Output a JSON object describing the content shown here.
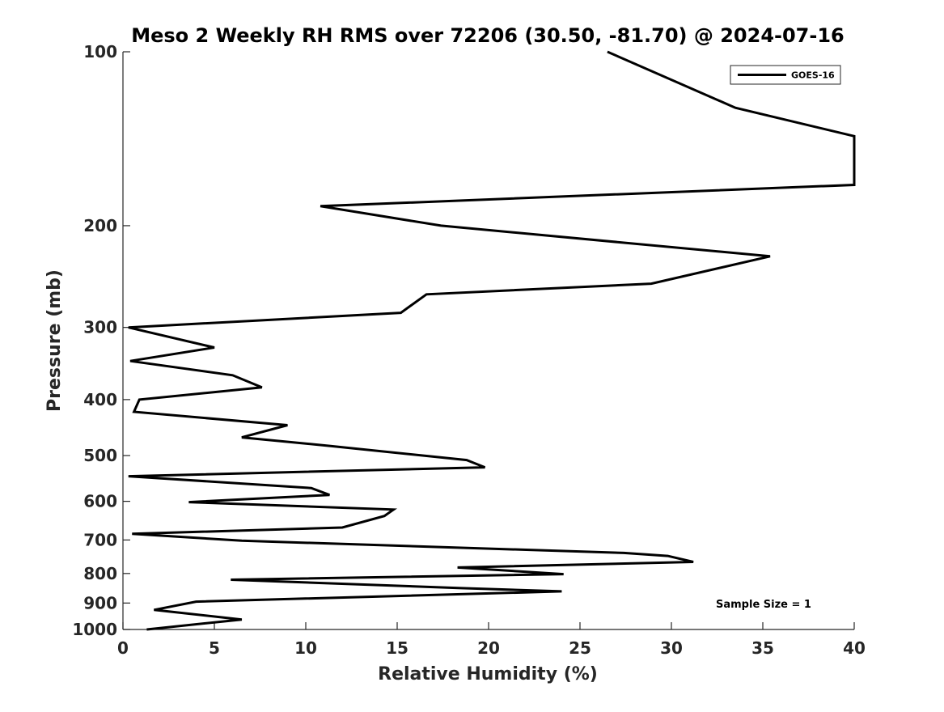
{
  "chart_data": {
    "type": "line",
    "title": "Meso 2 Weekly RH RMS over 72206 (30.50, -81.70) @ 2024-07-16",
    "xlabel": "Relative Humidity (%)",
    "ylabel": "Pressure (mb)",
    "xlim": [
      0,
      40
    ],
    "ylim": [
      100,
      1000
    ],
    "y_scale": "log",
    "y_reversed": true,
    "grid": false,
    "legend_position": "top-right",
    "x_ticks": [
      0,
      5,
      10,
      15,
      20,
      25,
      30,
      35,
      40
    ],
    "y_ticks": [
      100,
      200,
      300,
      400,
      500,
      600,
      700,
      800,
      900,
      1000
    ],
    "annotation": "Sample Size = 1",
    "color": "#000000",
    "series": [
      {
        "name": "GOES-16",
        "points": [
          [
            26.5,
            100
          ],
          [
            33.5,
            125
          ],
          [
            40.0,
            140
          ],
          [
            40.0,
            170
          ],
          [
            10.8,
            185
          ],
          [
            17.4,
            200
          ],
          [
            35.4,
            226
          ],
          [
            28.9,
            252
          ],
          [
            16.6,
            263
          ],
          [
            15.2,
            283
          ],
          [
            0.3,
            300
          ],
          [
            5.0,
            325
          ],
          [
            0.4,
            343
          ],
          [
            6.0,
            363
          ],
          [
            7.6,
            381
          ],
          [
            0.9,
            400
          ],
          [
            0.6,
            420
          ],
          [
            9.0,
            443
          ],
          [
            6.5,
            465
          ],
          [
            11.3,
            481
          ],
          [
            18.8,
            509
          ],
          [
            19.8,
            524
          ],
          [
            0.3,
            543
          ],
          [
            10.3,
            569
          ],
          [
            11.3,
            585
          ],
          [
            3.6,
            602
          ],
          [
            14.8,
            620
          ],
          [
            14.3,
            636
          ],
          [
            12.0,
            666
          ],
          [
            0.5,
            683
          ],
          [
            6.5,
            702
          ],
          [
            27.4,
            737
          ],
          [
            29.8,
            746
          ],
          [
            31.2,
            764
          ],
          [
            18.3,
            781
          ],
          [
            24.1,
            802
          ],
          [
            5.9,
            820
          ],
          [
            18.5,
            848
          ],
          [
            24.0,
            859
          ],
          [
            4.0,
            895
          ],
          [
            1.7,
            925
          ],
          [
            6.5,
            961
          ],
          [
            1.3,
            1000
          ]
        ]
      }
    ]
  }
}
